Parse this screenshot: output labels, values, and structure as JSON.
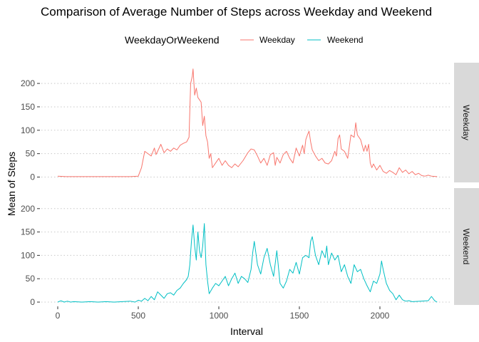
{
  "title": "Comparison of Average Number of Steps across Weekday and Weekend",
  "legend": {
    "title": "WeekdayOrWeekend",
    "entries": [
      {
        "label": "Weekday",
        "color": "#F8766D"
      },
      {
        "label": "Weekend",
        "color": "#00BFC4"
      }
    ]
  },
  "chart_data": {
    "type": "line",
    "title": "Comparison of Average Number of Steps across Weekday and Weekend",
    "xlabel": "Interval",
    "ylabel": "Mean of Steps",
    "xlim": [
      0,
      2355
    ],
    "ylim": [
      0,
      230
    ],
    "x_ticks": [
      0,
      500,
      1000,
      1500,
      2000
    ],
    "x_tick_labels": [
      "0",
      "500",
      "1000",
      "1500",
      "2000"
    ],
    "y_ticks": [
      0,
      50,
      100,
      150,
      200
    ],
    "y_tick_labels": [
      "0",
      "50",
      "100",
      "150",
      "200"
    ],
    "legend_position": "top",
    "panels": [
      "Weekday",
      "Weekend"
    ],
    "series": [
      {
        "name": "Weekday",
        "panel": "Weekday",
        "color": "#F8766D",
        "points": [
          [
            0,
            2
          ],
          [
            50,
            1
          ],
          [
            100,
            1
          ],
          [
            150,
            1
          ],
          [
            200,
            1
          ],
          [
            250,
            1
          ],
          [
            300,
            1
          ],
          [
            350,
            1
          ],
          [
            400,
            1
          ],
          [
            450,
            1
          ],
          [
            500,
            2
          ],
          [
            520,
            20
          ],
          [
            540,
            55
          ],
          [
            560,
            50
          ],
          [
            580,
            45
          ],
          [
            600,
            62
          ],
          [
            610,
            48
          ],
          [
            620,
            55
          ],
          [
            640,
            70
          ],
          [
            660,
            52
          ],
          [
            680,
            60
          ],
          [
            700,
            55
          ],
          [
            720,
            62
          ],
          [
            740,
            58
          ],
          [
            760,
            68
          ],
          [
            780,
            72
          ],
          [
            800,
            75
          ],
          [
            815,
            85
          ],
          [
            825,
            200
          ],
          [
            835,
            215
          ],
          [
            840,
            231
          ],
          [
            850,
            175
          ],
          [
            860,
            190
          ],
          [
            870,
            170
          ],
          [
            880,
            165
          ],
          [
            890,
            160
          ],
          [
            900,
            110
          ],
          [
            910,
            130
          ],
          [
            920,
            88
          ],
          [
            930,
            75
          ],
          [
            940,
            40
          ],
          [
            950,
            50
          ],
          [
            960,
            20
          ],
          [
            980,
            30
          ],
          [
            1000,
            40
          ],
          [
            1020,
            25
          ],
          [
            1040,
            35
          ],
          [
            1060,
            25
          ],
          [
            1080,
            20
          ],
          [
            1100,
            28
          ],
          [
            1120,
            22
          ],
          [
            1150,
            35
          ],
          [
            1180,
            52
          ],
          [
            1200,
            60
          ],
          [
            1220,
            58
          ],
          [
            1240,
            45
          ],
          [
            1260,
            30
          ],
          [
            1280,
            40
          ],
          [
            1300,
            25
          ],
          [
            1320,
            48
          ],
          [
            1340,
            52
          ],
          [
            1350,
            25
          ],
          [
            1360,
            42
          ],
          [
            1380,
            30
          ],
          [
            1400,
            48
          ],
          [
            1420,
            55
          ],
          [
            1440,
            40
          ],
          [
            1460,
            30
          ],
          [
            1480,
            62
          ],
          [
            1500,
            45
          ],
          [
            1520,
            68
          ],
          [
            1530,
            50
          ],
          [
            1540,
            80
          ],
          [
            1550,
            90
          ],
          [
            1560,
            98
          ],
          [
            1570,
            75
          ],
          [
            1580,
            58
          ],
          [
            1600,
            45
          ],
          [
            1620,
            35
          ],
          [
            1640,
            40
          ],
          [
            1660,
            30
          ],
          [
            1680,
            28
          ],
          [
            1700,
            35
          ],
          [
            1720,
            55
          ],
          [
            1730,
            45
          ],
          [
            1740,
            82
          ],
          [
            1750,
            90
          ],
          [
            1760,
            60
          ],
          [
            1780,
            55
          ],
          [
            1800,
            40
          ],
          [
            1820,
            90
          ],
          [
            1840,
            85
          ],
          [
            1850,
            116
          ],
          [
            1860,
            90
          ],
          [
            1880,
            80
          ],
          [
            1900,
            55
          ],
          [
            1910,
            68
          ],
          [
            1920,
            55
          ],
          [
            1930,
            70
          ],
          [
            1940,
            30
          ],
          [
            1950,
            20
          ],
          [
            1960,
            28
          ],
          [
            1980,
            15
          ],
          [
            2000,
            25
          ],
          [
            2020,
            12
          ],
          [
            2040,
            8
          ],
          [
            2060,
            14
          ],
          [
            2080,
            10
          ],
          [
            2100,
            5
          ],
          [
            2120,
            20
          ],
          [
            2140,
            10
          ],
          [
            2160,
            15
          ],
          [
            2180,
            7
          ],
          [
            2200,
            12
          ],
          [
            2220,
            5
          ],
          [
            2240,
            8
          ],
          [
            2260,
            3
          ],
          [
            2280,
            2
          ],
          [
            2300,
            4
          ],
          [
            2320,
            2
          ],
          [
            2355,
            1
          ]
        ]
      },
      {
        "name": "Weekend",
        "panel": "Weekend",
        "color": "#00BFC4",
        "points": [
          [
            0,
            0
          ],
          [
            20,
            3
          ],
          [
            40,
            0
          ],
          [
            60,
            2
          ],
          [
            80,
            0
          ],
          [
            100,
            1
          ],
          [
            150,
            0
          ],
          [
            200,
            1
          ],
          [
            250,
            0
          ],
          [
            300,
            1
          ],
          [
            350,
            0
          ],
          [
            400,
            1
          ],
          [
            450,
            2
          ],
          [
            480,
            0
          ],
          [
            500,
            4
          ],
          [
            520,
            2
          ],
          [
            540,
            8
          ],
          [
            560,
            3
          ],
          [
            580,
            12
          ],
          [
            600,
            5
          ],
          [
            620,
            22
          ],
          [
            640,
            15
          ],
          [
            660,
            8
          ],
          [
            680,
            18
          ],
          [
            700,
            20
          ],
          [
            720,
            15
          ],
          [
            740,
            25
          ],
          [
            760,
            30
          ],
          [
            780,
            40
          ],
          [
            800,
            48
          ],
          [
            810,
            55
          ],
          [
            820,
            80
          ],
          [
            830,
            130
          ],
          [
            840,
            165
          ],
          [
            850,
            120
          ],
          [
            860,
            90
          ],
          [
            870,
            150
          ],
          [
            880,
            110
          ],
          [
            890,
            95
          ],
          [
            900,
            120
          ],
          [
            910,
            168
          ],
          [
            920,
            80
          ],
          [
            930,
            45
          ],
          [
            940,
            18
          ],
          [
            960,
            30
          ],
          [
            980,
            40
          ],
          [
            1000,
            35
          ],
          [
            1020,
            45
          ],
          [
            1040,
            55
          ],
          [
            1060,
            35
          ],
          [
            1080,
            50
          ],
          [
            1100,
            62
          ],
          [
            1120,
            40
          ],
          [
            1140,
            55
          ],
          [
            1160,
            50
          ],
          [
            1180,
            42
          ],
          [
            1200,
            70
          ],
          [
            1210,
            105
          ],
          [
            1220,
            130
          ],
          [
            1240,
            80
          ],
          [
            1260,
            60
          ],
          [
            1280,
            95
          ],
          [
            1300,
            115
          ],
          [
            1320,
            80
          ],
          [
            1340,
            55
          ],
          [
            1360,
            110
          ],
          [
            1380,
            40
          ],
          [
            1400,
            30
          ],
          [
            1420,
            45
          ],
          [
            1440,
            70
          ],
          [
            1460,
            62
          ],
          [
            1480,
            85
          ],
          [
            1500,
            60
          ],
          [
            1520,
            95
          ],
          [
            1540,
            100
          ],
          [
            1560,
            95
          ],
          [
            1570,
            130
          ],
          [
            1580,
            140
          ],
          [
            1600,
            100
          ],
          [
            1620,
            80
          ],
          [
            1640,
            110
          ],
          [
            1660,
            95
          ],
          [
            1670,
            120
          ],
          [
            1680,
            80
          ],
          [
            1700,
            105
          ],
          [
            1720,
            90
          ],
          [
            1740,
            100
          ],
          [
            1760,
            65
          ],
          [
            1780,
            80
          ],
          [
            1800,
            55
          ],
          [
            1820,
            40
          ],
          [
            1840,
            80
          ],
          [
            1860,
            65
          ],
          [
            1880,
            70
          ],
          [
            1900,
            50
          ],
          [
            1920,
            35
          ],
          [
            1940,
            22
          ],
          [
            1960,
            45
          ],
          [
            1980,
            40
          ],
          [
            2000,
            60
          ],
          [
            2010,
            88
          ],
          [
            2020,
            70
          ],
          [
            2040,
            40
          ],
          [
            2060,
            25
          ],
          [
            2080,
            18
          ],
          [
            2100,
            5
          ],
          [
            2120,
            15
          ],
          [
            2140,
            5
          ],
          [
            2160,
            2
          ],
          [
            2180,
            3
          ],
          [
            2200,
            1
          ],
          [
            2250,
            2
          ],
          [
            2300,
            3
          ],
          [
            2320,
            12
          ],
          [
            2340,
            3
          ],
          [
            2355,
            0
          ]
        ]
      }
    ]
  }
}
